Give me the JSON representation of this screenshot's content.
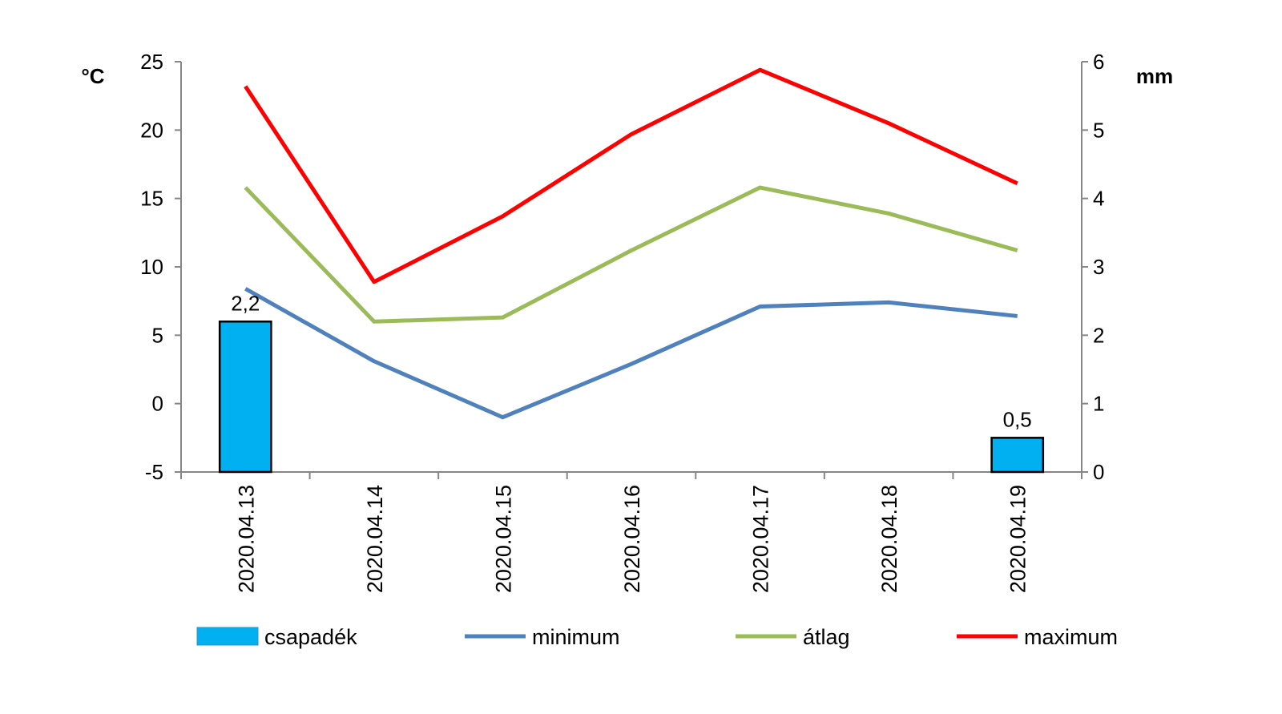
{
  "chart_data": {
    "type": "bar+line",
    "categories": [
      "2020.04.13",
      "2020.04.14",
      "2020.04.15",
      "2020.04.16",
      "2020.04.17",
      "2020.04.18",
      "2020.04.19"
    ],
    "left_axis": {
      "unit": "°C",
      "min": -5,
      "max": 25,
      "ticks": [
        "-5",
        "0",
        "5",
        "10",
        "15",
        "20",
        "25"
      ]
    },
    "right_axis": {
      "unit": "mm",
      "min": 0,
      "max": 6,
      "ticks": [
        "0",
        "1",
        "2",
        "3",
        "4",
        "5",
        "6"
      ]
    },
    "bars": {
      "name": "csapadék",
      "color": "#00B0F0",
      "axis": "right",
      "values": [
        2.2,
        null,
        null,
        null,
        null,
        null,
        0.5
      ],
      "labels": [
        "2,2",
        "",
        "",
        "",
        "",
        "",
        "0,5"
      ]
    },
    "series": [
      {
        "name": "minimum",
        "color": "#4F81BD",
        "axis": "left",
        "values": [
          8.4,
          3.1,
          -1.0,
          2.9,
          7.1,
          7.4,
          6.4
        ]
      },
      {
        "name": "átlag",
        "color": "#9BBB59",
        "axis": "left",
        "values": [
          15.8,
          6.0,
          6.3,
          11.2,
          15.8,
          13.9,
          11.2
        ]
      },
      {
        "name": "maximum",
        "color": "#FF0000",
        "axis": "left",
        "values": [
          23.2,
          8.9,
          13.7,
          19.7,
          24.4,
          20.5,
          16.1
        ]
      }
    ],
    "legend_position": "bottom"
  }
}
